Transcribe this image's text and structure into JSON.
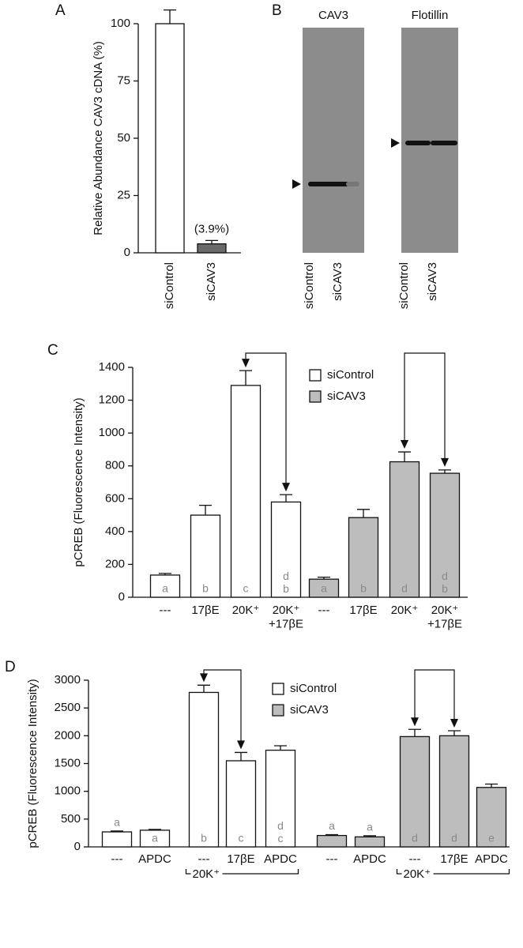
{
  "chart_data": [
    {
      "type": "bar",
      "panel": "A",
      "y_label": "Relative Abundance CAV3 cDNA (%)",
      "categories": [
        "siControl",
        "siCAV3"
      ],
      "values": [
        100,
        3.9
      ],
      "errors": [
        6,
        1.5
      ],
      "value_labels": [
        null,
        "(3.9%)"
      ],
      "colors": [
        "#ffffff",
        "#6a6a6a"
      ],
      "ylim": [
        0,
        100
      ],
      "yticks": [
        0,
        25,
        50,
        75,
        100
      ]
    },
    {
      "type": "bar",
      "panel": "C",
      "y_label": "pCREB (Fluorescence Intensity)",
      "categories": [
        "---",
        "17βE",
        "20K⁺",
        "20K⁺\n+17βE",
        "---",
        "17βE",
        "20K⁺",
        "20K⁺\n+17βE"
      ],
      "series": [
        {
          "name": "siControl",
          "color": "#ffffff",
          "values": [
            135,
            500,
            1290,
            580,
            null,
            null,
            null,
            null
          ],
          "errors": [
            10,
            60,
            90,
            45,
            null,
            null,
            null,
            null
          ],
          "letters": [
            "a",
            "b",
            "c",
            "d\nb",
            null,
            null,
            null,
            null
          ]
        },
        {
          "name": "siCAV3",
          "color": "#bdbdbd",
          "values": [
            null,
            null,
            null,
            null,
            110,
            485,
            825,
            755
          ],
          "errors": [
            null,
            null,
            null,
            null,
            12,
            50,
            60,
            20
          ],
          "letters": [
            null,
            null,
            null,
            null,
            "a",
            "b",
            "d",
            "d\nb"
          ]
        }
      ],
      "arrows": [
        [
          2,
          3
        ],
        [
          6,
          7
        ]
      ],
      "ylim": [
        0,
        1400
      ],
      "yticks": [
        0,
        200,
        400,
        600,
        800,
        1000,
        1200,
        1400
      ],
      "legend": "top-right"
    },
    {
      "type": "bar",
      "panel": "D",
      "y_label": "pCREB (Fluorescence Intensity)",
      "categories": [
        "---",
        "APDC",
        "---",
        "17βE",
        "APDC",
        "---",
        "APDC",
        "---",
        "17βE",
        "APDC"
      ],
      "series": [
        {
          "name": "siControl",
          "color": "#ffffff",
          "values": [
            270,
            300,
            2780,
            1550,
            1740,
            null,
            null,
            null,
            null,
            null
          ],
          "errors": [
            15,
            15,
            130,
            150,
            80,
            null,
            null,
            null,
            null,
            null
          ],
          "letters": [
            "a",
            "a",
            "b",
            "c",
            "d\nc",
            null,
            null,
            null,
            null,
            null
          ]
        },
        {
          "name": "siCAV3",
          "color": "#bdbdbd",
          "values": [
            null,
            null,
            null,
            null,
            null,
            205,
            180,
            1985,
            2000,
            1070
          ],
          "errors": [
            null,
            null,
            null,
            null,
            null,
            15,
            20,
            130,
            90,
            60
          ],
          "letters": [
            null,
            null,
            null,
            null,
            null,
            "a",
            "a",
            "d",
            "d",
            "e"
          ]
        }
      ],
      "arrows": [
        [
          2,
          3
        ],
        [
          7,
          8
        ]
      ],
      "groups": [
        {
          "label": "20K⁺",
          "categories": [
            2,
            3,
            4
          ]
        },
        {
          "label": "20K⁺",
          "categories": [
            7,
            8,
            9
          ]
        }
      ],
      "ylim": [
        0,
        3000
      ],
      "yticks": [
        0,
        500,
        1000,
        1500,
        2000,
        2500,
        3000
      ],
      "legend": "top-right"
    }
  ],
  "blot": {
    "panel": "B",
    "blots": [
      {
        "label": "CAV3",
        "lanes": [
          "siControl",
          "siCAV3"
        ]
      },
      {
        "label": "Flotillin",
        "lanes": [
          "siControl",
          "siCAV3"
        ]
      }
    ]
  }
}
